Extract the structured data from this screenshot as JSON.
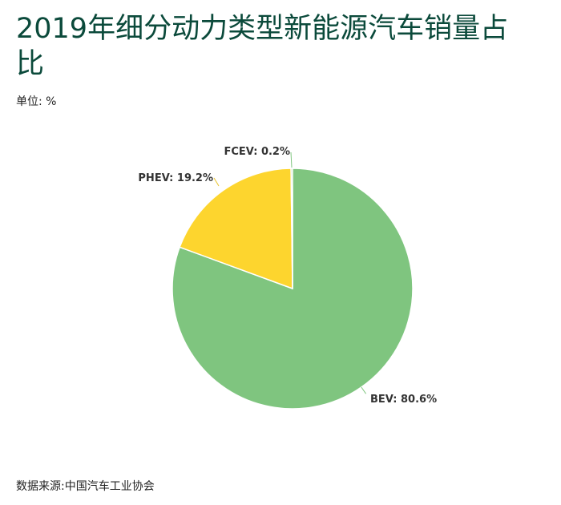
{
  "chart_data": {
    "type": "pie",
    "title": "2019年细分动力类型新能源汽车销量占比",
    "subtitle": "单位: %",
    "source": "数据来源:中国汽车工业协会",
    "slices": [
      {
        "name": "BEV",
        "value": 80.6,
        "label": "BEV: 80.6%",
        "color": "#7fc57f"
      },
      {
        "name": "PHEV",
        "value": 19.2,
        "label": "PHEV: 19.2%",
        "color": "#fdd52e"
      },
      {
        "name": "FCEV",
        "value": 0.2,
        "label": "FCEV: 0.2%",
        "color": "#7fc57f"
      }
    ]
  }
}
